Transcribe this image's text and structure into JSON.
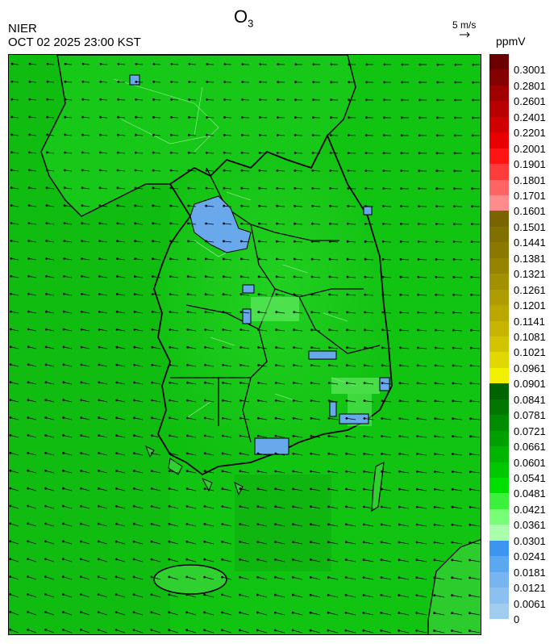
{
  "header": {
    "title_main": "O",
    "title_sub": "3",
    "source": "NIER",
    "datetime": "OCT 02 2025 23:00 KST"
  },
  "wind_scale": {
    "label": "5 m/s",
    "icon": "arrow-right-icon"
  },
  "colorbar": {
    "unit": "ppmV",
    "labels": [
      "0.3001",
      "0.2801",
      "0.2601",
      "0.2401",
      "0.2201",
      "0.2001",
      "0.1901",
      "0.1801",
      "0.1701",
      "0.1601",
      "0.1501",
      "0.1441",
      "0.1381",
      "0.1321",
      "0.1261",
      "0.1201",
      "0.1141",
      "0.1081",
      "0.1021",
      "0.0961",
      "0.0901",
      "0.0841",
      "0.0781",
      "0.0721",
      "0.0661",
      "0.0601",
      "0.0541",
      "0.0481",
      "0.0421",
      "0.0361",
      "0.0301",
      "0.0241",
      "0.0181",
      "0.0121",
      "0.0061",
      "0"
    ],
    "colors": [
      "#6b0000",
      "#850000",
      "#a00000",
      "#b80000",
      "#d00000",
      "#e80000",
      "#ff1414",
      "#ff3c3c",
      "#ff6464",
      "#ff8c8c",
      "#7a6400",
      "#807000",
      "#8a7800",
      "#968400",
      "#a29000",
      "#ae9c00",
      "#baa800",
      "#c6b400",
      "#d2c400",
      "#e0d800",
      "#f0f000",
      "#006400",
      "#007800",
      "#008c00",
      "#00a000",
      "#00b400",
      "#00c800",
      "#00e000",
      "#3cf03c",
      "#78ff78",
      "#aaffaa",
      "#3c96f0",
      "#5aa8f0",
      "#78b4f0",
      "#8cc0f0",
      "#a0ccf0"
    ]
  }
}
